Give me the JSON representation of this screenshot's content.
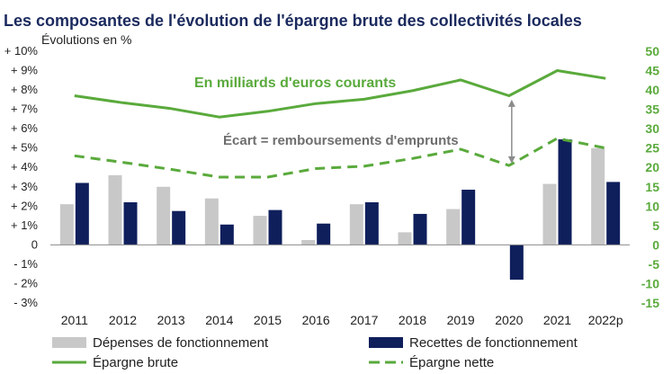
{
  "chart_data": {
    "type": "bar",
    "title": "Les composantes de l'évolution de l'épargne brute des collectivités locales",
    "ylabel": "Évolutions en %",
    "categories": [
      "2011",
      "2012",
      "2013",
      "2014",
      "2015",
      "2016",
      "2017",
      "2018",
      "2019",
      "2020",
      "2021",
      "2022p"
    ],
    "ylim": [
      -3,
      10
    ],
    "yticks": [
      "- 3%",
      "- 2%",
      "- 1%",
      "0",
      "+ 1%",
      "+ 2%",
      "+ 3%",
      "+ 4%",
      "+ 5%",
      "+ 6%",
      "+ 7%",
      "+ 8%",
      "+ 9%",
      "+ 10%"
    ],
    "y2lim": [
      -15,
      50
    ],
    "y2ticks": [
      "-15",
      "-10",
      "-5",
      "0",
      "5",
      "10",
      "15",
      "20",
      "25",
      "30",
      "35",
      "40",
      "45",
      "50"
    ],
    "grid": false,
    "legend_position": "bottom",
    "series": [
      {
        "name": "Dépenses de fonctionnement",
        "kind": "bar",
        "axis": "left",
        "color": "#c8c8c8",
        "values": [
          2.1,
          3.6,
          3.0,
          2.4,
          1.5,
          0.25,
          2.1,
          0.65,
          1.85,
          0.0,
          3.15,
          5.0
        ]
      },
      {
        "name": "Recettes de fonctionnement",
        "kind": "bar",
        "axis": "left",
        "color": "#0f1f5c",
        "values": [
          3.2,
          2.2,
          1.75,
          1.05,
          1.8,
          1.1,
          2.2,
          1.6,
          2.85,
          -1.8,
          5.45,
          3.25
        ]
      },
      {
        "name": "Épargne brute",
        "kind": "line",
        "axis": "right",
        "color": "#5aaa3c",
        "dash": "solid",
        "values": [
          38.5,
          36.7,
          35.2,
          33.0,
          34.5,
          36.5,
          37.6,
          39.8,
          42.6,
          38.5,
          45.0,
          43.0
        ]
      },
      {
        "name": "Épargne nette",
        "kind": "line",
        "axis": "right",
        "color": "#5aaa3c",
        "dash": "dashed",
        "values": [
          23.0,
          21.3,
          19.5,
          17.5,
          17.5,
          19.7,
          20.3,
          22.3,
          24.7,
          20.5,
          27.5,
          25.0
        ]
      }
    ],
    "annotations": [
      {
        "text": "En milliards d'euros courants",
        "color": "#5aaa3c"
      },
      {
        "text": "Écart = remboursements d'emprunts",
        "color": "#6e6e6e",
        "arrow_at": "2020",
        "arrow_from": 21.0,
        "arrow_to": 37.5
      }
    ]
  }
}
